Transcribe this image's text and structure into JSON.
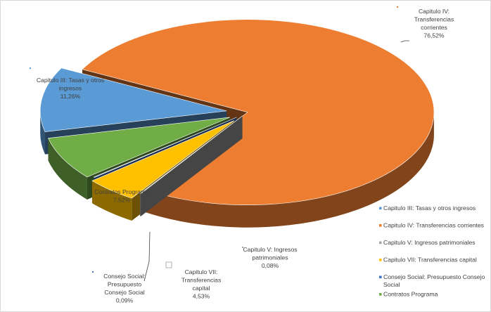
{
  "chart_data": {
    "type": "pie",
    "style": "3d-exploded",
    "title": "",
    "slices": [
      {
        "name": "Capítulo III: Tasas y otros ingresos",
        "value": 11.26,
        "value_label": "11,26%",
        "color": "#5b9bd5",
        "label_lines": [
          "Capitulo III: Tasas y otros",
          "ingresos",
          "11,26%"
        ]
      },
      {
        "name": "Capítulo IV: Transferencias corrientes",
        "value": 76.52,
        "value_label": "76,52%",
        "color": "#ed7d31",
        "label_lines": [
          "Capitulo IV:",
          "Transferencias",
          "corrientes",
          "76,52%"
        ]
      },
      {
        "name": "Capítulo V: Ingresos patrimoniales",
        "value": 0.08,
        "value_label": "0,08%",
        "color": "#a5a5a5",
        "label_lines": [
          "Capitulo V: Ingresos",
          "patrimoniales",
          "0,08%"
        ]
      },
      {
        "name": "Capítulo VII: Transferencias capital",
        "value": 4.53,
        "value_label": "4,53%",
        "color": "#ffc000",
        "label_lines": [
          "Capitulo VII:",
          "Transferencias",
          "capital",
          "4,53%"
        ]
      },
      {
        "name": "Consejo Social: Presupuesto Consejo Social",
        "value": 0.09,
        "value_label": "0,09%",
        "color": "#4472c4",
        "label_lines": [
          "Consejo Social:",
          "Presupuesto",
          "Consejo Social",
          "0,09%"
        ]
      },
      {
        "name": "Contratos Programa",
        "value": 7.52,
        "value_label": "7,52%",
        "color": "#70ad47",
        "label_lines": [
          "Contratos Programa",
          "7,52%"
        ]
      }
    ],
    "legend": {
      "position": "bottom-right",
      "entries": [
        {
          "lines": [
            "Capitulo III: Tasas y otros ingresos"
          ],
          "color": "#5b9bd5"
        },
        {
          "lines": [
            "Capitulo IV: Transferencias corrientes"
          ],
          "color": "#ed7d31"
        },
        {
          "lines": [
            "Capitulo V: Ingresos patrimoniales"
          ],
          "color": "#a5a5a5"
        },
        {
          "lines": [
            "Capitulo VII: Transferencias capital"
          ],
          "color": "#ffc000"
        },
        {
          "lines": [
            "Consejo Social: Presupuesto Consejo",
            "Social"
          ],
          "color": "#4472c4"
        },
        {
          "lines": [
            "Contratos Programa"
          ],
          "color": "#70ad47"
        }
      ]
    }
  }
}
